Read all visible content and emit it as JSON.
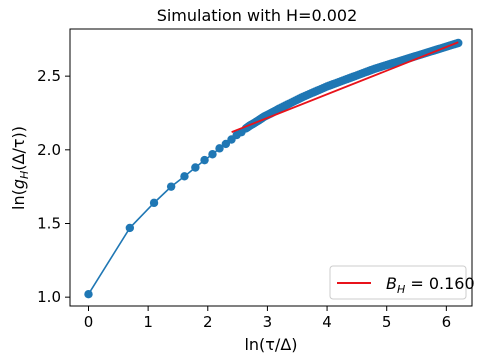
{
  "chart_data": {
    "type": "line",
    "title": "Simulation with H=0.002",
    "xlabel": "ln(τ/Δ)",
    "ylabel": "ln(g_H(Δ/τ))",
    "xlim": [
      -0.31,
      6.43
    ],
    "ylim": [
      0.94,
      2.82
    ],
    "x_ticks": [
      0,
      1,
      2,
      3,
      4,
      5,
      6
    ],
    "y_ticks": [
      1.0,
      1.5,
      2.0,
      2.5
    ],
    "x_tick_labels": [
      "0",
      "1",
      "2",
      "3",
      "4",
      "5",
      "6"
    ],
    "y_tick_labels": [
      "1.0",
      "1.5",
      "2.0",
      "2.5"
    ],
    "grid": false,
    "legend_position": "lower-right",
    "series": [
      {
        "label": "",
        "type": "line-with-markers",
        "color": "#1f77b4",
        "x": [
          0.0,
          0.693,
          1.099,
          1.386,
          1.609,
          1.792,
          1.946,
          2.079,
          2.197,
          2.303,
          2.398,
          2.485,
          2.565,
          2.639,
          2.708,
          2.773,
          2.833,
          2.89,
          2.944,
          2.996,
          3.045,
          3.091,
          3.2,
          3.4,
          3.6,
          3.8,
          4.0,
          4.2,
          4.4,
          4.6,
          4.8,
          5.0,
          5.2,
          5.4,
          5.6,
          5.8,
          6.0,
          6.2
        ],
        "y": [
          1.02,
          1.47,
          1.64,
          1.75,
          1.82,
          1.88,
          1.93,
          1.97,
          2.01,
          2.04,
          2.07,
          2.1,
          2.12,
          2.145,
          2.165,
          2.18,
          2.195,
          2.21,
          2.225,
          2.235,
          2.245,
          2.255,
          2.28,
          2.32,
          2.36,
          2.395,
          2.43,
          2.46,
          2.49,
          2.52,
          2.55,
          2.575,
          2.6,
          2.625,
          2.65,
          2.675,
          2.7,
          2.725
        ]
      },
      {
        "label": "B_H = 0.160",
        "type": "line",
        "color": "#e8131b",
        "x": [
          2.4,
          6.2
        ],
        "y": [
          2.12,
          2.73
        ]
      }
    ]
  }
}
